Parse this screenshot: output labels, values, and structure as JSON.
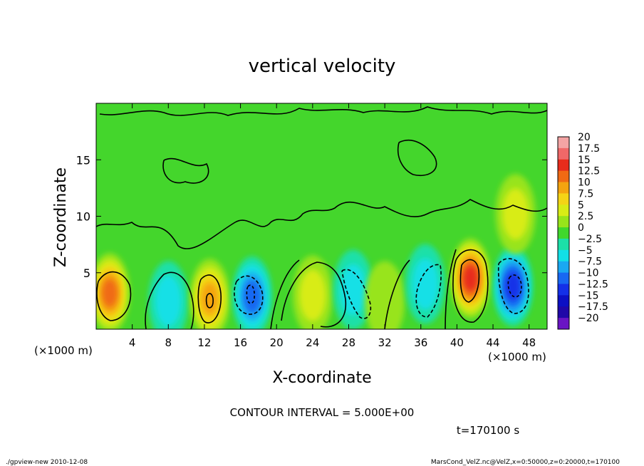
{
  "chart_data": {
    "type": "heatmap",
    "title": "vertical velocity",
    "xlabel": "X-coordinate",
    "ylabel": "Z-coordinate",
    "x_unit_left": "(×1000 m)",
    "x_unit_right": "(×1000 m)",
    "xlim": [
      0,
      50
    ],
    "ylim": [
      0,
      20
    ],
    "x_ticks": [
      4,
      8,
      12,
      16,
      20,
      24,
      28,
      32,
      36,
      40,
      44,
      48
    ],
    "x_tick_labels": [
      "4",
      "8",
      "12",
      "16",
      "20",
      "24",
      "28",
      "32",
      "36",
      "40",
      "44",
      "48"
    ],
    "y_ticks": [
      5,
      10,
      15
    ],
    "y_tick_labels": [
      "5",
      "10",
      "15"
    ],
    "colorbar": {
      "levels": [
        20,
        17.5,
        15,
        12.5,
        10,
        7.5,
        5,
        2.5,
        0,
        -2.5,
        -5,
        -7.5,
        -10,
        -12.5,
        -15,
        -17.5,
        -20
      ],
      "labels": [
        "20",
        "17.5",
        "15",
        "12.5",
        "10",
        "7.5",
        "5",
        "2.5",
        "0",
        "−2.5",
        "−5",
        "−7.5",
        "−10",
        "−12.5",
        "−15",
        "−17.5",
        "−20"
      ],
      "colors": [
        "#f4a4a4",
        "#f06868",
        "#e82c1c",
        "#f06a14",
        "#f4a410",
        "#f4d416",
        "#d8ec16",
        "#98e41a",
        "#40d82c",
        "#1ce0a8",
        "#12e0e6",
        "#1aa8f2",
        "#1868f2",
        "#1430e8",
        "#0c10c4",
        "#2008a8",
        "#6a14c4"
      ]
    },
    "features": [
      {
        "x": 1.5,
        "z": 3.2,
        "w": 13
      },
      {
        "x": 8,
        "z": 2.5,
        "w": -5
      },
      {
        "x": 12.6,
        "z": 2.7,
        "w": 11
      },
      {
        "x": 17.3,
        "z": 2.9,
        "w": -9
      },
      {
        "x": 24,
        "z": 3.0,
        "w": 5
      },
      {
        "x": 28.5,
        "z": 3.5,
        "w": -5
      },
      {
        "x": 32,
        "z": 2.5,
        "w": 3
      },
      {
        "x": 36.5,
        "z": 4.0,
        "w": -6
      },
      {
        "x": 41.5,
        "z": 4.5,
        "w": 14
      },
      {
        "x": 46.2,
        "z": 3.8,
        "w": -13
      },
      {
        "x": 46.5,
        "z": 10.2,
        "w": 5
      }
    ],
    "contour_interval_text": "CONTOUR INTERVAL = 5.000E+00",
    "time_text": "t=170100 s"
  },
  "footer": {
    "left": "./gpview-new   2010-12-08",
    "right": "MarsCond_VelZ.nc@VelZ,x=0:50000,z=0:20000,t=170100"
  }
}
